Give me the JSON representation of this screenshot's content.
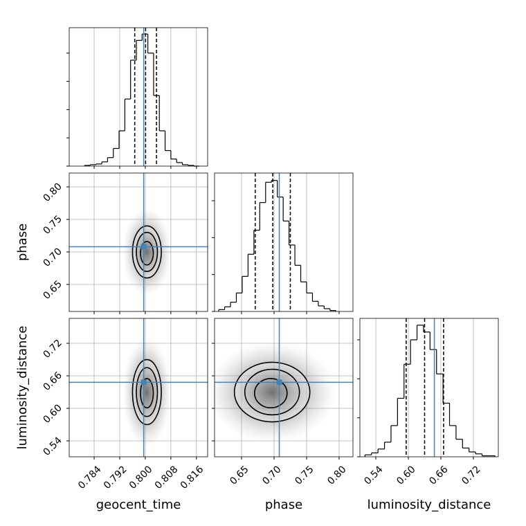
{
  "chart_data": {
    "type": "corner",
    "truth_color": "#4682b4",
    "hist_color": "#000000",
    "grid": true,
    "parameters": [
      {
        "name": "geocent_time",
        "lim": [
          0.7762,
          0.8195
        ],
        "ticks": [
          0.784,
          0.792,
          {
            "value": 0.8,
            "label": "0.800"
          },
          0.808,
          0.816
        ],
        "truth": 0.7995,
        "quantiles": [
          0.7967,
          0.8001,
          0.8035
        ],
        "bins": [
          0.781,
          0.7828,
          0.7846,
          0.7864,
          0.7882,
          0.79,
          0.7918,
          0.7936,
          0.7954,
          0.7972,
          0.799,
          0.8008,
          0.8026,
          0.8044,
          0.8062,
          0.808,
          0.8098,
          0.8116,
          0.8134,
          0.8152,
          0.817
        ],
        "counts": [
          1,
          2,
          3,
          6,
          12,
          25,
          50,
          95,
          150,
          178,
          187,
          160,
          100,
          50,
          22,
          10,
          5,
          2,
          1,
          0
        ],
        "hist_ylim": [
          0,
          196
        ],
        "hist_yticks": [
          0,
          40,
          80,
          120,
          160
        ]
      },
      {
        "name": "phase",
        "lim": [
          0.6085,
          0.8213
        ],
        "ticks": [
          0.65,
          {
            "value": 0.7,
            "label": "0.70"
          },
          0.75,
          {
            "value": 0.8,
            "label": "0.80"
          }
        ],
        "truth": 0.708,
        "quantiles": [
          0.671,
          0.698,
          0.725
        ],
        "bins": [
          0.615,
          0.624,
          0.633,
          0.642,
          0.651,
          0.66,
          0.669,
          0.678,
          0.687,
          0.696,
          0.705,
          0.714,
          0.723,
          0.732,
          0.741,
          0.75,
          0.759,
          0.768,
          0.777,
          0.786,
          0.795
        ],
        "counts": [
          2,
          5,
          10,
          20,
          38,
          62,
          88,
          118,
          140,
          142,
          124,
          98,
          72,
          50,
          32,
          20,
          11,
          6,
          3,
          1
        ],
        "hist_ylim": [
          0,
          150
        ],
        "hist_yticks": [
          0,
          40,
          80,
          120
        ]
      },
      {
        "name": "luminosity_distance",
        "lim": [
          0.5106,
          0.766
        ],
        "ticks": [
          0.54,
          {
            "value": 0.6,
            "label": "0.60"
          },
          0.66,
          0.72
        ],
        "truth": 0.648,
        "quantiles": [
          0.596,
          0.63,
          0.665
        ],
        "bins": [
          0.52,
          0.532,
          0.544,
          0.556,
          0.568,
          0.58,
          0.592,
          0.604,
          0.616,
          0.628,
          0.64,
          0.652,
          0.664,
          0.676,
          0.688,
          0.7,
          0.712,
          0.724,
          0.736,
          0.748,
          0.76
        ],
        "counts": [
          2,
          4,
          8,
          15,
          32,
          60,
          95,
          120,
          135,
          128,
          110,
          85,
          55,
          32,
          18,
          9,
          5,
          3,
          1,
          1
        ],
        "hist_ylim": [
          0,
          142
        ],
        "hist_yticks": [
          0,
          40,
          80,
          120
        ]
      }
    ],
    "pairs": [
      {
        "x": 0,
        "y": 1,
        "contours": [
          {
            "cx": 0.8005,
            "cy": 0.7,
            "rx": 0.0045,
            "ry": 0.04
          },
          {
            "cx": 0.8005,
            "cy": 0.7,
            "rx": 0.0033,
            "ry": 0.03
          },
          {
            "cx": 0.8005,
            "cy": 0.698,
            "rx": 0.002,
            "ry": 0.018
          }
        ]
      },
      {
        "x": 0,
        "y": 2,
        "contours": [
          {
            "cx": 0.8005,
            "cy": 0.63,
            "rx": 0.0045,
            "ry": 0.06
          },
          {
            "cx": 0.8005,
            "cy": 0.63,
            "rx": 0.0033,
            "ry": 0.045
          },
          {
            "cx": 0.8005,
            "cy": 0.628,
            "rx": 0.002,
            "ry": 0.027
          }
        ]
      },
      {
        "x": 1,
        "y": 2,
        "contours": [
          {
            "cx": 0.697,
            "cy": 0.63,
            "rx": 0.058,
            "ry": 0.055
          },
          {
            "cx": 0.697,
            "cy": 0.63,
            "rx": 0.042,
            "ry": 0.042
          },
          {
            "cx": 0.695,
            "cy": 0.628,
            "rx": 0.025,
            "ry": 0.027
          }
        ]
      }
    ]
  }
}
